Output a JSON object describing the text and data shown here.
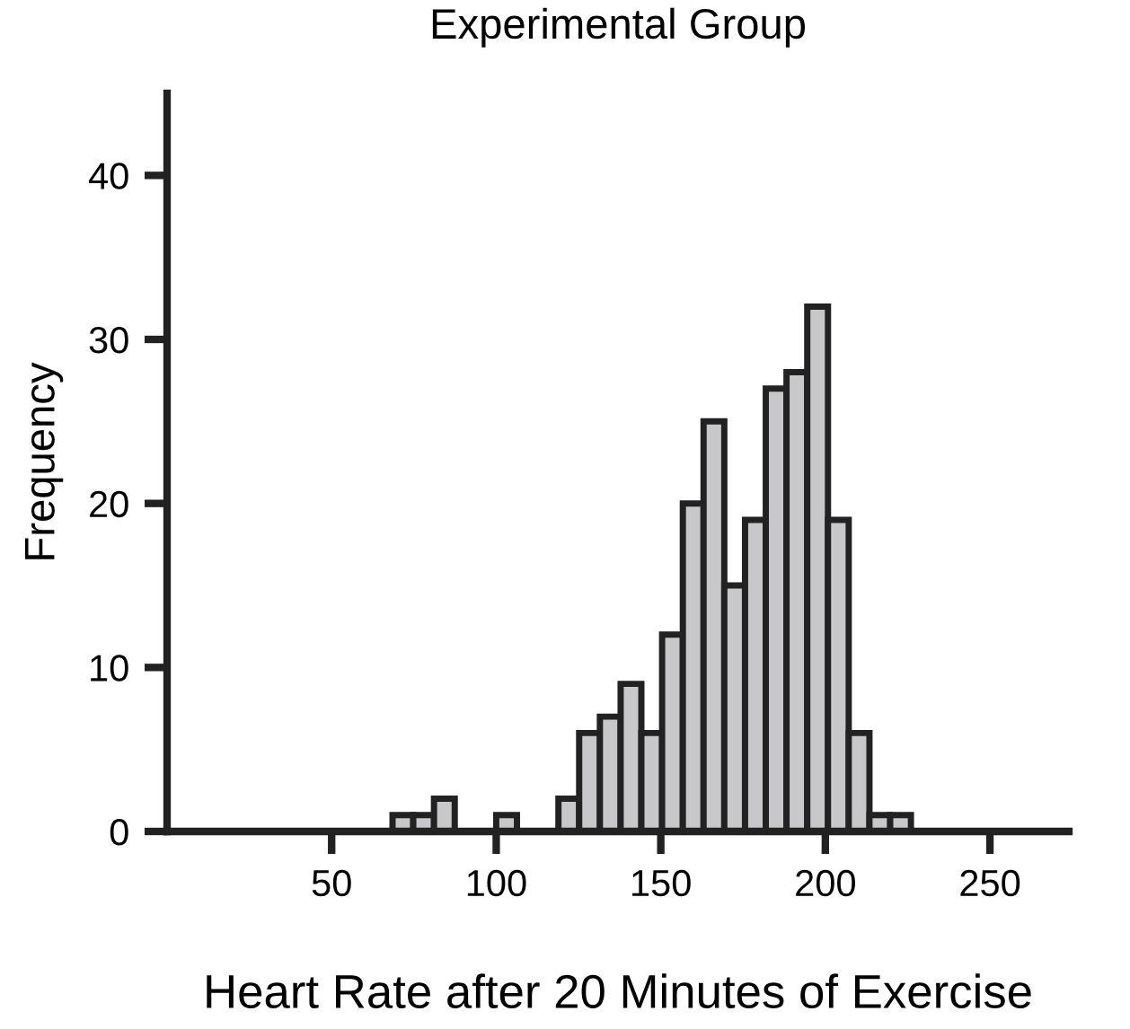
{
  "chart_data": {
    "type": "histogram",
    "title": "Experimental Group",
    "xlabel": "Heart Rate after 20 Minutes of Exercise",
    "ylabel": "Frequency",
    "bins": [
      68.5,
      74.8,
      81.1,
      87.4,
      93.7,
      100,
      106.3,
      112.6,
      118.9,
      125.2,
      131.5,
      137.8,
      144.1,
      150.4,
      156.7,
      163,
      169.3,
      175.6,
      181.9,
      188.2,
      194.5,
      200.8,
      207.1,
      213.4,
      219.7,
      226
    ],
    "values": [
      1,
      1,
      2,
      0,
      0,
      1,
      0,
      0,
      2,
      6,
      7,
      9,
      6,
      12,
      20,
      25,
      15,
      19,
      27,
      28,
      32,
      19,
      6,
      1,
      1
    ],
    "color": "#c8c8ca",
    "xlim": [
      0,
      274
    ],
    "xticks": [
      50,
      100,
      150,
      200,
      250
    ],
    "ylim": [
      0,
      45
    ],
    "yticks": [
      0,
      10,
      20,
      30,
      40
    ],
    "grid": false,
    "legend": false
  }
}
